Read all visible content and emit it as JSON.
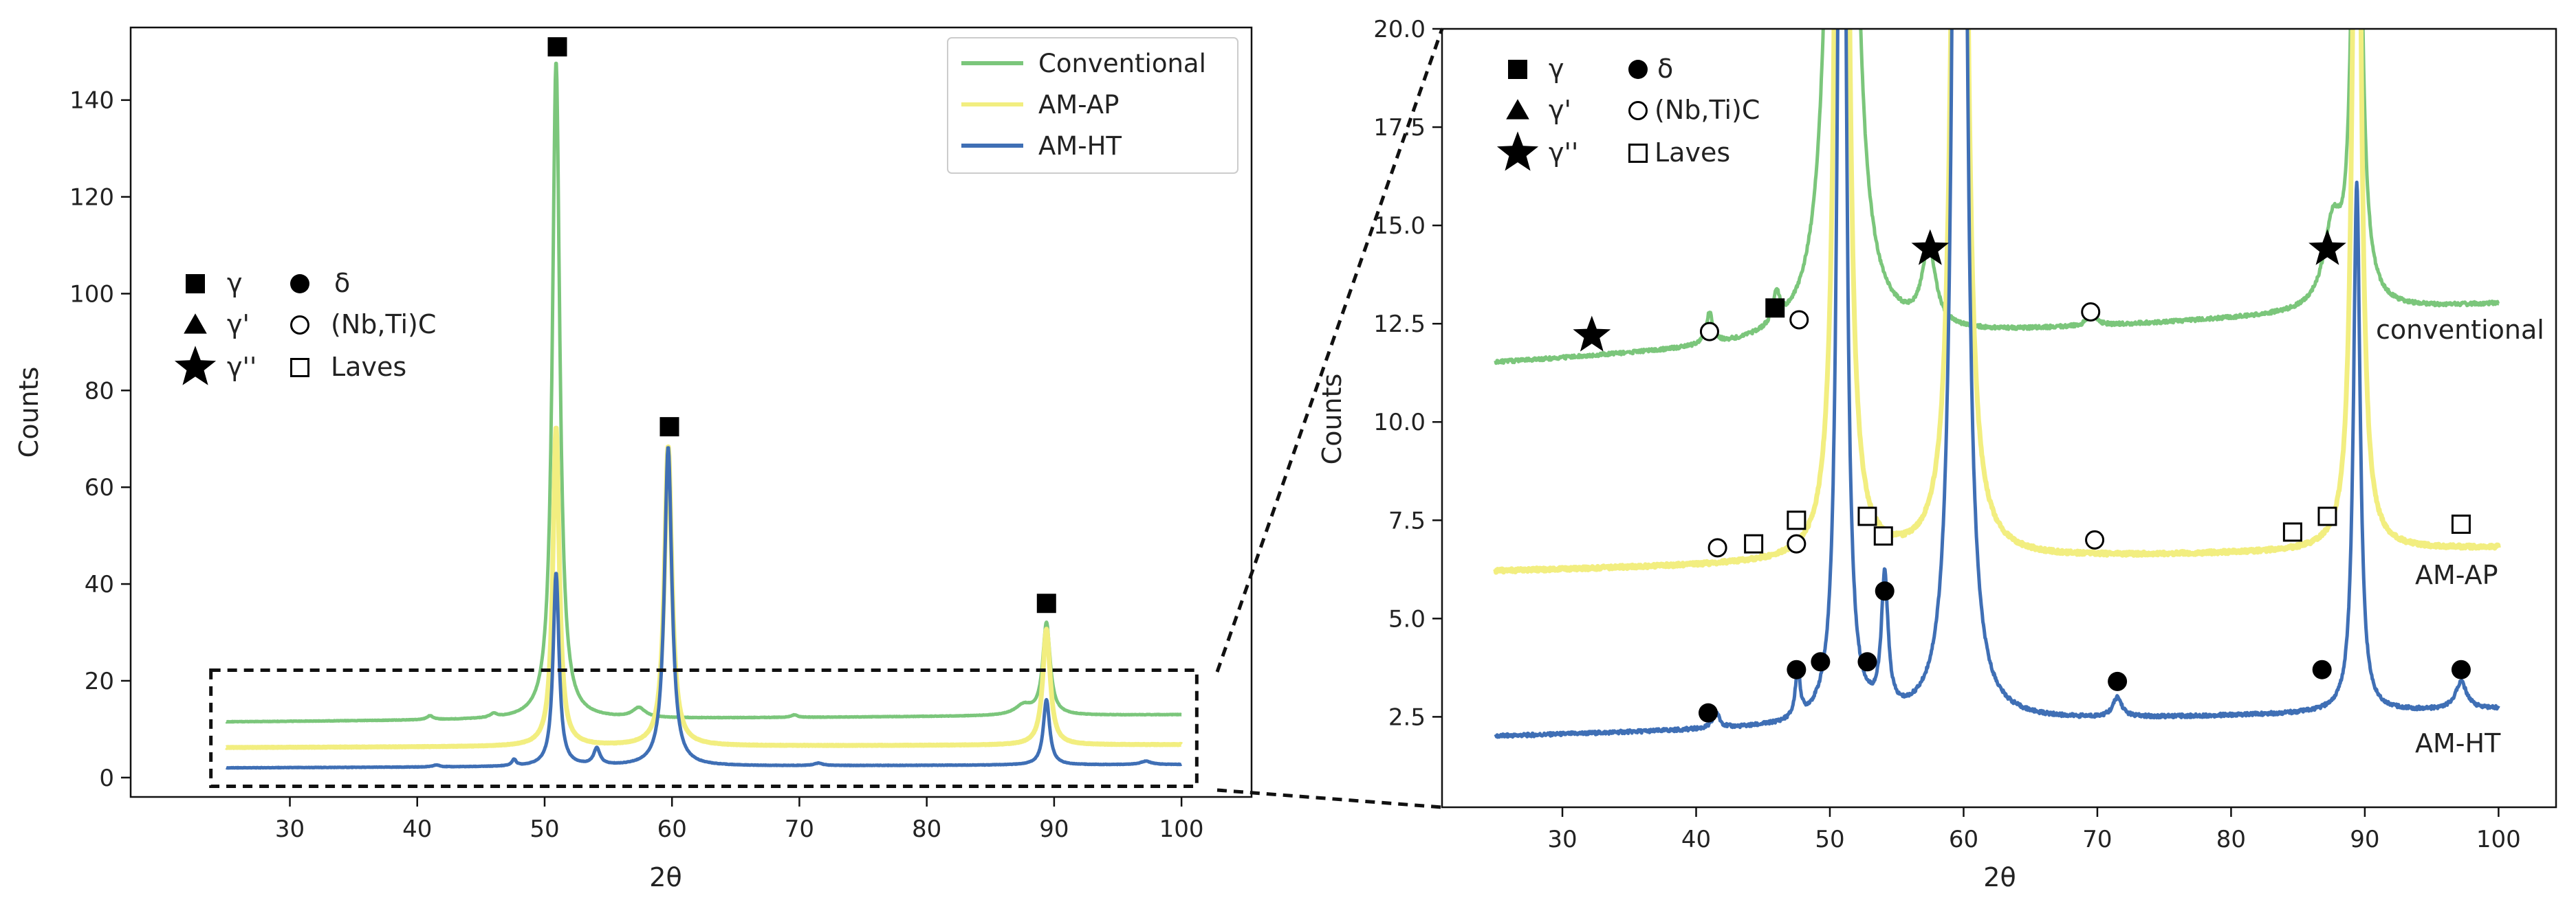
{
  "chart_data": [
    {
      "id": "full",
      "type": "line",
      "xlabel": "2θ",
      "ylabel": "Counts",
      "xlim": [
        17.5,
        105.5
      ],
      "ylim": [
        -4,
        155
      ],
      "xticks": [
        30,
        40,
        50,
        60,
        70,
        80,
        90,
        100
      ],
      "yticks": [
        0,
        20,
        40,
        60,
        80,
        100,
        120,
        140
      ],
      "ytick_labels": [
        "0",
        "20",
        "40",
        "60",
        "80",
        "100",
        "120",
        "140"
      ],
      "legend": {
        "position": "top-right",
        "entries": [
          {
            "label": "Conventional",
            "color": "#7bc67b"
          },
          {
            "label": "AM-AP",
            "color": "#f2ee80"
          },
          {
            "label": "AM-HT",
            "color": "#3f6fb5"
          }
        ]
      },
      "series": [
        {
          "name": "Conventional",
          "color": "#7bc67b",
          "baseline": 11.5,
          "end_value": 13.0,
          "peaks": [
            [
              41,
              0.8,
              0.3
            ],
            [
              46,
              0.8,
              0.3
            ],
            [
              50.9,
              136,
              0.35
            ],
            [
              57.4,
              2,
              0.6
            ],
            [
              69.6,
              0.5,
              0.3
            ],
            [
              87.6,
              2,
              0.8
            ],
            [
              89.4,
              19,
              0.35
            ]
          ]
        },
        {
          "name": "AM-AP",
          "color": "#f2ee80",
          "baseline": 6.2,
          "end_value": 6.8,
          "peaks": [
            [
              50.9,
              66,
              0.3
            ],
            [
              59.7,
              62,
              0.35
            ],
            [
              89.4,
              24,
              0.35
            ]
          ]
        },
        {
          "name": "AM-HT",
          "color": "#3f6fb5",
          "baseline": 2.0,
          "end_value": 2.7,
          "peaks": [
            [
              41.5,
              0.4,
              0.3
            ],
            [
              47.6,
              1.3,
              0.2
            ],
            [
              50.9,
              40,
              0.28
            ],
            [
              54.1,
              3.4,
              0.3
            ],
            [
              59.7,
              66,
              0.35
            ],
            [
              71.5,
              0.5,
              0.4
            ],
            [
              89.4,
              13.5,
              0.3
            ],
            [
              97.2,
              0.7,
              0.5
            ]
          ]
        }
      ],
      "peak_markers": [
        {
          "x": 51,
          "y": 151,
          "symbol": "square"
        },
        {
          "x": 59.8,
          "y": 72.5,
          "symbol": "square"
        },
        {
          "x": 89.4,
          "y": 36,
          "symbol": "square"
        }
      ],
      "zoom_box": {
        "x": [
          23.8,
          101.2
        ],
        "y": [
          -1.8,
          22.2
        ]
      },
      "marker_legend": [
        {
          "symbol": "square",
          "label": "γ"
        },
        {
          "symbol": "circle",
          "label": "δ"
        },
        {
          "symbol": "triangle",
          "label": "γ'"
        },
        {
          "symbol": "open-circle",
          "label": "(Nb,Ti)C"
        },
        {
          "symbol": "star",
          "label": "γ''"
        },
        {
          "symbol": "open-square",
          "label": "Laves"
        }
      ]
    },
    {
      "id": "zoom",
      "type": "line",
      "xlabel": "2θ",
      "ylabel": "Counts",
      "xlim": [
        21,
        104.3
      ],
      "ylim": [
        0.2,
        20.0
      ],
      "xticks": [
        30,
        40,
        50,
        60,
        70,
        80,
        90,
        100
      ],
      "yticks": [
        2.5,
        5.0,
        7.5,
        10.0,
        12.5,
        15.0,
        17.5,
        20.0
      ],
      "ytick_labels": [
        "2.5",
        "5.0",
        "7.5",
        "10.0",
        "12.5",
        "15.0",
        "17.5",
        "20.0"
      ],
      "curve_labels": [
        {
          "text": "conventional",
          "x": 98,
          "y": 12.2
        },
        {
          "text": "AM-AP",
          "x": 96,
          "y": 5.0
        },
        {
          "text": "AM-HT",
          "x": 96,
          "y": 1.0
        }
      ],
      "phase_markers": [
        {
          "x": 32.2,
          "y": 12.2,
          "symbol": "star"
        },
        {
          "x": 41.0,
          "y": 12.3,
          "symbol": "open-circle"
        },
        {
          "x": 45.9,
          "y": 12.9,
          "symbol": "square"
        },
        {
          "x": 47.7,
          "y": 12.6,
          "symbol": "open-circle"
        },
        {
          "x": 57.5,
          "y": 14.4,
          "symbol": "star"
        },
        {
          "x": 69.5,
          "y": 12.8,
          "symbol": "open-circle"
        },
        {
          "x": 87.2,
          "y": 14.4,
          "symbol": "star"
        },
        {
          "x": 41.6,
          "y": 6.8,
          "symbol": "open-circle"
        },
        {
          "x": 44.3,
          "y": 6.9,
          "symbol": "open-square"
        },
        {
          "x": 47.5,
          "y": 6.9,
          "symbol": "open-circle"
        },
        {
          "x": 47.5,
          "y": 7.5,
          "symbol": "open-square"
        },
        {
          "x": 52.8,
          "y": 7.6,
          "symbol": "open-square"
        },
        {
          "x": 54.0,
          "y": 7.1,
          "symbol": "open-square"
        },
        {
          "x": 69.8,
          "y": 7.0,
          "symbol": "open-circle"
        },
        {
          "x": 84.6,
          "y": 7.2,
          "symbol": "open-square"
        },
        {
          "x": 87.2,
          "y": 7.6,
          "symbol": "open-square"
        },
        {
          "x": 97.2,
          "y": 7.4,
          "symbol": "open-square"
        },
        {
          "x": 40.9,
          "y": 2.6,
          "symbol": "circle"
        },
        {
          "x": 47.5,
          "y": 3.7,
          "symbol": "circle"
        },
        {
          "x": 49.3,
          "y": 3.9,
          "symbol": "circle"
        },
        {
          "x": 52.8,
          "y": 3.9,
          "symbol": "circle"
        },
        {
          "x": 54.1,
          "y": 5.7,
          "symbol": "circle"
        },
        {
          "x": 71.5,
          "y": 3.4,
          "symbol": "circle"
        },
        {
          "x": 86.8,
          "y": 3.7,
          "symbol": "circle"
        },
        {
          "x": 97.2,
          "y": 3.7,
          "symbol": "circle"
        }
      ],
      "marker_legend": [
        {
          "symbol": "square",
          "label": "γ"
        },
        {
          "symbol": "circle",
          "label": "δ"
        },
        {
          "symbol": "triangle",
          "label": "γ'"
        },
        {
          "symbol": "open-circle",
          "label": "(Nb,Ti)C"
        },
        {
          "symbol": "star",
          "label": "γ''"
        },
        {
          "symbol": "open-square",
          "label": "Laves"
        }
      ]
    }
  ]
}
